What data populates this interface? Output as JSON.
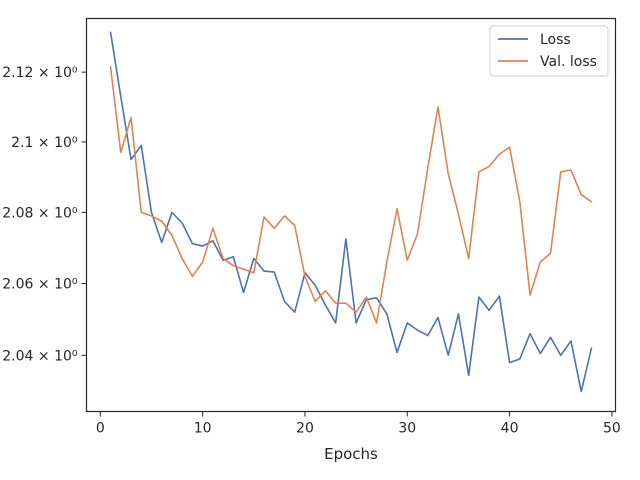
{
  "chart_data": {
    "type": "line",
    "xlabel": "Epochs",
    "ylabel": "",
    "xlim": [
      -1.35,
      50.35
    ],
    "ylim": [
      2.0245,
      2.1355
    ],
    "yscale": "log",
    "grid": false,
    "legend_position": "top-right",
    "x_ticks": [
      0,
      10,
      20,
      30,
      40,
      50
    ],
    "x_tick_labels": [
      "0",
      "10",
      "20",
      "30",
      "40",
      "50"
    ],
    "y_ticks": [
      2.04,
      2.06,
      2.08,
      2.1,
      2.12
    ],
    "y_tick_labels": [
      "2.04 × 10⁰",
      "2.06 × 10⁰",
      "2.08 × 10⁰",
      "2.1 × 10⁰",
      "2.12 × 10⁰"
    ],
    "x": [
      1,
      2,
      3,
      4,
      5,
      6,
      7,
      8,
      9,
      10,
      11,
      12,
      13,
      14,
      15,
      16,
      17,
      18,
      19,
      20,
      21,
      22,
      23,
      24,
      25,
      26,
      27,
      28,
      29,
      30,
      31,
      32,
      33,
      34,
      35,
      36,
      37,
      38,
      39,
      40,
      41,
      42,
      43,
      44,
      45,
      46,
      47,
      48
    ],
    "series": [
      {
        "name": "Loss",
        "color": "#4c72b0",
        "values": [
          2.1315,
          2.113,
          2.095,
          2.099,
          2.08,
          2.0715,
          2.08,
          2.077,
          2.0712,
          2.0705,
          2.072,
          2.0665,
          2.0675,
          2.0575,
          2.067,
          2.0635,
          2.0632,
          2.055,
          2.052,
          2.063,
          2.0595,
          2.054,
          2.049,
          2.0725,
          2.049,
          2.0555,
          2.056,
          2.0515,
          2.0408,
          2.049,
          2.047,
          2.0455,
          2.0505,
          2.04,
          2.0515,
          2.0345,
          2.0562,
          2.0525,
          2.0565,
          2.038,
          2.039,
          2.046,
          2.0405,
          2.045,
          2.04,
          2.044,
          2.03,
          2.042
        ]
      },
      {
        "name": "Val. loss",
        "color": "#dd8452",
        "values": [
          2.1215,
          2.097,
          2.107,
          2.08,
          2.079,
          2.0775,
          2.0735,
          2.067,
          2.062,
          2.066,
          2.0755,
          2.067,
          2.065,
          2.064,
          2.063,
          2.0787,
          2.0755,
          2.079,
          2.0763,
          2.062,
          2.055,
          2.058,
          2.0545,
          2.0545,
          2.052,
          2.0562,
          2.049,
          2.066,
          2.081,
          2.0665,
          2.074,
          2.0925,
          2.11,
          2.091,
          2.0795,
          2.067,
          2.0915,
          2.093,
          2.0965,
          2.0985,
          2.083,
          2.0568,
          2.066,
          2.0685,
          2.0915,
          2.092,
          2.085,
          2.083
        ]
      }
    ]
  }
}
